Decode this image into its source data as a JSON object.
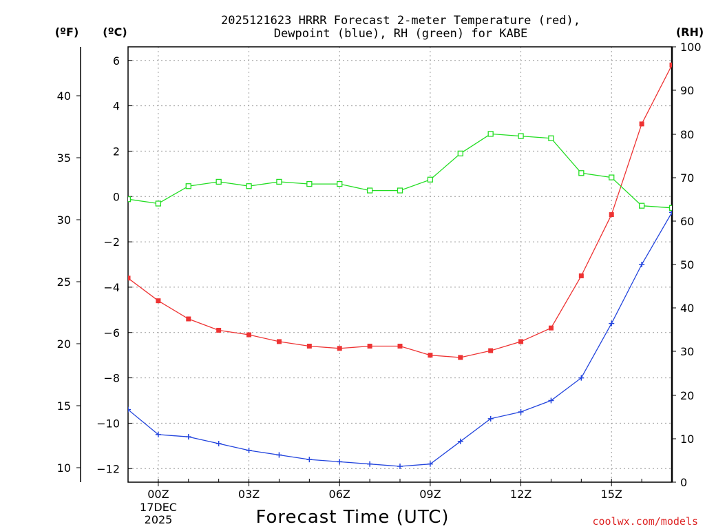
{
  "chart_data": {
    "type": "line",
    "title_line1": "2025121623 HRRR Forecast 2-meter Temperature (red),",
    "title_line2": "Dewpoint (blue), RH (green) for KABE",
    "xlabel": "Forecast Time (UTC)",
    "credit": "coolwx.com/models",
    "unit_f": "(ºF)",
    "unit_c": "(ºC)",
    "unit_rh": "(RH)",
    "date_line1": "17DEC",
    "date_line2": "2025",
    "x_hours": [
      -1,
      0,
      1,
      2,
      3,
      4,
      5,
      6,
      7,
      8,
      9,
      10,
      11,
      12,
      13,
      14,
      15,
      16,
      17
    ],
    "x_ticks": [
      {
        "hour": 0,
        "label": "00Z"
      },
      {
        "hour": 3,
        "label": "03Z"
      },
      {
        "hour": 6,
        "label": "06Z"
      },
      {
        "hour": 9,
        "label": "09Z"
      },
      {
        "hour": 12,
        "label": "12Z"
      },
      {
        "hour": 15,
        "label": "15Z"
      }
    ],
    "celsius_ticks": [
      {
        "value": 6,
        "label": "6"
      },
      {
        "value": 4,
        "label": "4"
      },
      {
        "value": 2,
        "label": "2"
      },
      {
        "value": 0,
        "label": "0"
      },
      {
        "value": -2,
        "label": "−2"
      },
      {
        "value": -4,
        "label": "−4"
      },
      {
        "value": -6,
        "label": "−6"
      },
      {
        "value": -8,
        "label": "−8"
      },
      {
        "value": -10,
        "label": "−10"
      },
      {
        "value": -12,
        "label": "−12"
      }
    ],
    "fahrenheit_ticks": [
      "40",
      "35",
      "30",
      "25",
      "20",
      "15",
      "10"
    ],
    "rh_ticks": [
      "100",
      "90",
      "80",
      "70",
      "60",
      "50",
      "40",
      "30",
      "20",
      "10",
      "0"
    ],
    "xlim": [
      -1,
      17
    ],
    "ylim_c": [
      -12.6,
      6.6
    ],
    "ylim_rh": [
      0,
      100
    ],
    "series": [
      {
        "name": "Temperature",
        "color": "#ee3333",
        "unit": "C",
        "marker": "filled-square",
        "values": [
          -3.6,
          -4.6,
          -5.4,
          -5.9,
          -6.1,
          -6.4,
          -6.6,
          -6.7,
          -6.6,
          -6.6,
          -7.0,
          -7.1,
          -6.8,
          -6.4,
          -5.8,
          -3.5,
          -0.8,
          3.2,
          5.8
        ]
      },
      {
        "name": "Dewpoint",
        "color": "#2244dd",
        "unit": "C",
        "marker": "plus",
        "values": [
          -9.4,
          -10.5,
          -10.6,
          -10.9,
          -11.2,
          -11.4,
          -11.6,
          -11.7,
          -11.8,
          -11.9,
          -11.8,
          -10.8,
          -9.8,
          -9.5,
          -9.0,
          -8.0,
          -5.6,
          -3.0,
          -0.7
        ]
      },
      {
        "name": "RH",
        "color": "#22dd22",
        "unit": "%",
        "marker": "open-square",
        "values": [
          65,
          64,
          68,
          69,
          68,
          69,
          68.5,
          68.5,
          67,
          67,
          69.5,
          75.5,
          80,
          79.5,
          79,
          71,
          70,
          63.5,
          63
        ]
      }
    ]
  }
}
